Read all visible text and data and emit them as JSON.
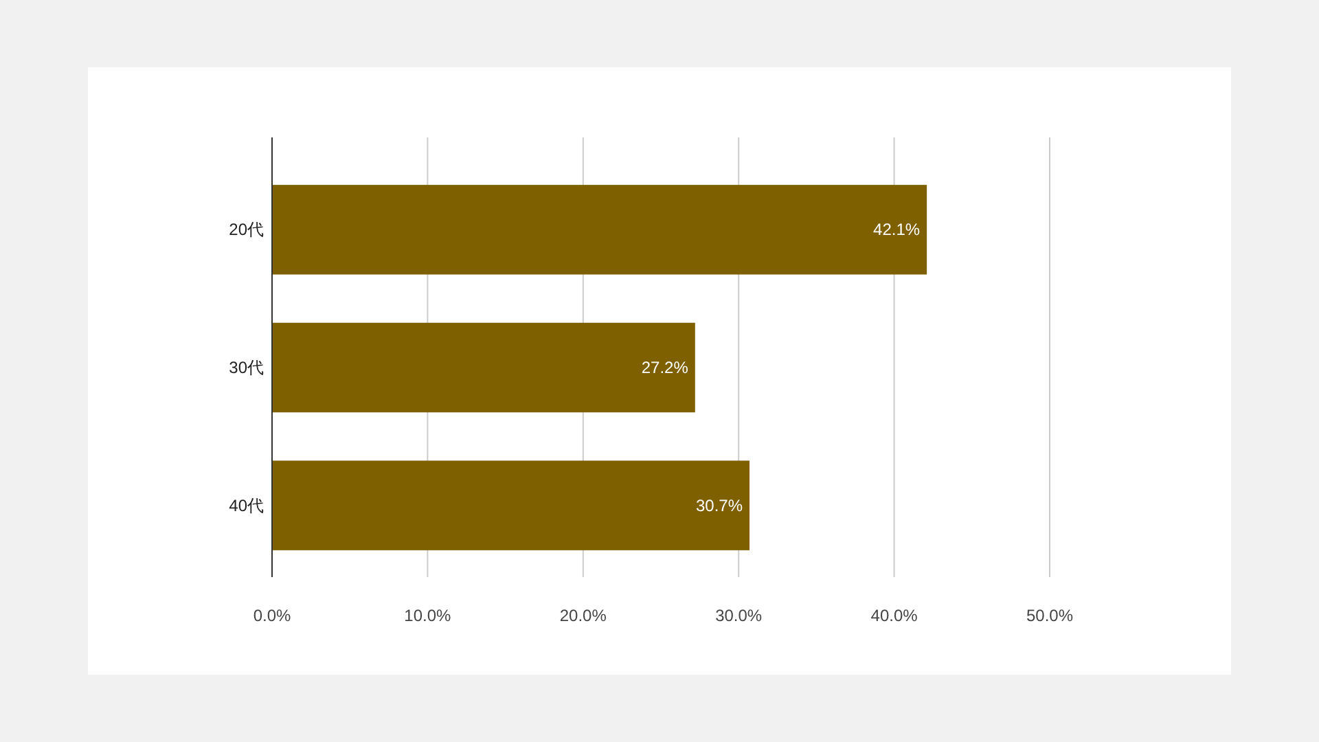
{
  "chart_data": {
    "type": "bar",
    "orientation": "horizontal",
    "categories": [
      "20代",
      "30代",
      "40代"
    ],
    "values": [
      42.1,
      27.2,
      30.7
    ],
    "color": "#7f6000",
    "value_labels": [
      "42.1%",
      "27.2%",
      "30.7%"
    ],
    "xlim": [
      0,
      50
    ],
    "xticks": [
      {
        "value": 0,
        "label": "0.0%"
      },
      {
        "value": 10,
        "label": "10.0%"
      },
      {
        "value": 20,
        "label": "20.0%"
      },
      {
        "value": 30,
        "label": "30.0%"
      },
      {
        "value": 40,
        "label": "40.0%"
      },
      {
        "value": 50,
        "label": "50.0%"
      }
    ],
    "grid": "x"
  }
}
